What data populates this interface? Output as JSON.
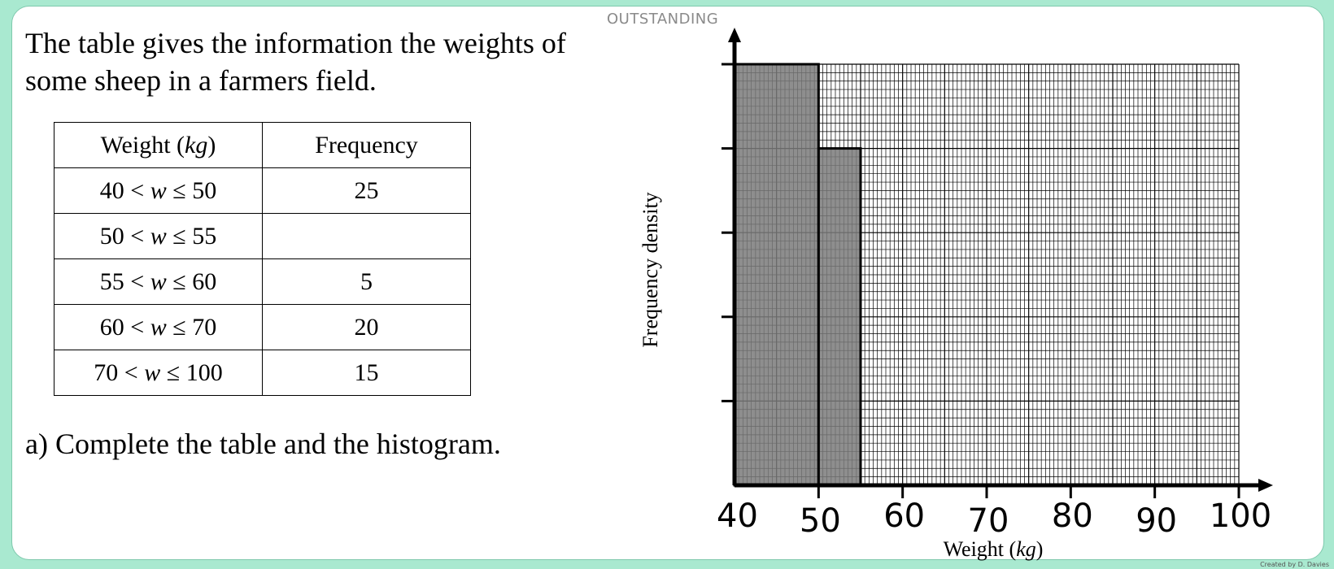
{
  "level_label": "OUTSTANDING",
  "intro_text": "The table gives the information the weights of some sheep in a farmers field.",
  "table": {
    "headers": [
      "Weight (kg)",
      "Frequency"
    ],
    "rows": [
      {
        "weight": "40 < w ≤ 50",
        "frequency": "25"
      },
      {
        "weight": "50 < w ≤ 55",
        "frequency": ""
      },
      {
        "weight": "55 < w ≤ 60",
        "frequency": "5"
      },
      {
        "weight": "60 < w ≤ 70",
        "frequency": "20"
      },
      {
        "weight": "70 < w ≤ 100",
        "frequency": "15"
      }
    ]
  },
  "question_text": "a) Complete the table and the histogram.",
  "credit_text": "Created by D. Davies",
  "chart_data": {
    "type": "bar",
    "xlabel": "Weight (kg)",
    "ylabel": "Frequency density",
    "x_ticks": [
      "40",
      "50",
      "60",
      "70",
      "80",
      "90",
      "100"
    ],
    "xlim": [
      40,
      100
    ],
    "ylim": [
      0,
      5
    ],
    "y_tick_count": 5,
    "bars": [
      {
        "x_start": 40,
        "x_end": 50,
        "height": 5
      },
      {
        "x_start": 50,
        "x_end": 55,
        "height": 4
      }
    ],
    "grid": true,
    "bar_color": "#7a7a7a"
  }
}
